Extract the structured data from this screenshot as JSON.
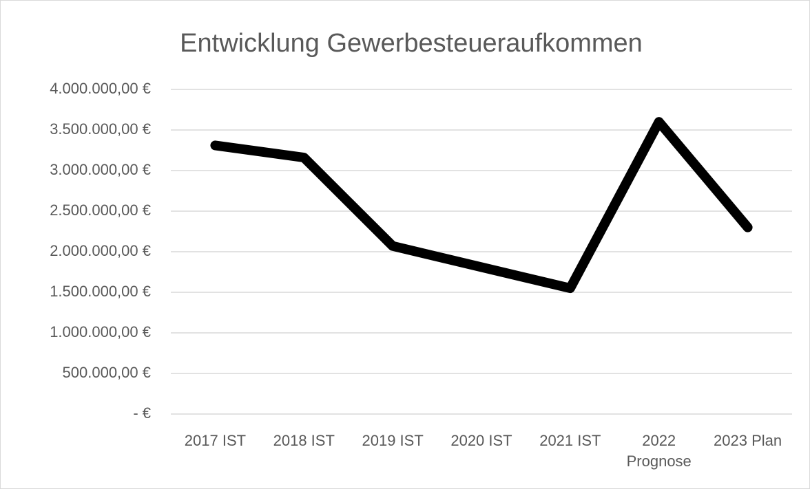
{
  "chart_data": {
    "type": "line",
    "title": "Entwicklung Gewerbesteueraufkommen",
    "categories": [
      "2017 IST",
      "2018 IST",
      "2019 IST",
      "2020 IST",
      "2021 IST",
      "2022 Prognose",
      "2023 Plan"
    ],
    "series": [
      {
        "name": "Gewerbesteueraufkommen",
        "color": "#000000",
        "values": [
          3310000,
          3160000,
          2070000,
          1810000,
          1550000,
          3600000,
          2300000
        ]
      }
    ],
    "ylim": [
      0,
      4000000
    ],
    "yticks": [
      {
        "value": 0,
        "label": "-  €"
      },
      {
        "value": 500000,
        "label": "500.000,00 €"
      },
      {
        "value": 1000000,
        "label": "1.000.000,00 €"
      },
      {
        "value": 1500000,
        "label": "1.500.000,00 €"
      },
      {
        "value": 2000000,
        "label": "2.000.000,00 €"
      },
      {
        "value": 2500000,
        "label": "2.500.000,00 €"
      },
      {
        "value": 3000000,
        "label": "3.000.000,00 €"
      },
      {
        "value": 3500000,
        "label": "3.500.000,00 €"
      },
      {
        "value": 4000000,
        "label": "4.000.000,00 €"
      }
    ],
    "grid": true
  }
}
